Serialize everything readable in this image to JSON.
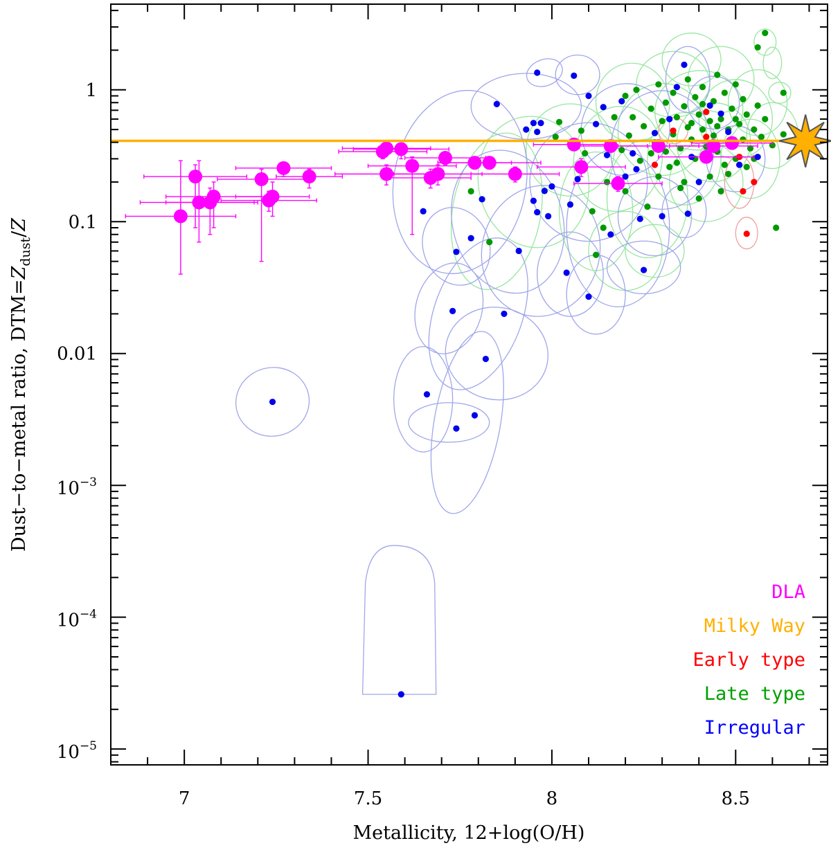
{
  "chart_data": {
    "type": "scatter",
    "title": "",
    "xlabel": "Metallicity, 12+log(O/H)",
    "ylabel_parts": {
      "prefix": "Dust−to−metal ratio, DTM=",
      "z": "Z",
      "sub": "dust",
      "slash": "/",
      "z2": "Z"
    },
    "xlim": [
      6.8,
      8.75
    ],
    "ylim_log10": [
      -5.12,
      0.65
    ],
    "log_y": true,
    "x_ticks": [
      {
        "value": 7.0,
        "label": "7"
      },
      {
        "value": 7.5,
        "label": "7.5"
      },
      {
        "value": 8.0,
        "label": "8"
      },
      {
        "value": 8.5,
        "label": "8.5"
      }
    ],
    "y_ticks": [
      {
        "log": 0,
        "label": "1"
      },
      {
        "log": -1,
        "label": "0.1"
      },
      {
        "log": -2,
        "label": "0.01"
      }
    ],
    "y_ticks_exp": [
      {
        "log": -3,
        "base": "10",
        "exp": "−3"
      },
      {
        "log": -4,
        "base": "10",
        "exp": "−4"
      },
      {
        "log": -5,
        "base": "10",
        "exp": "−5"
      }
    ],
    "milky_way": {
      "dtm": 0.41,
      "x_star": 8.69
    },
    "legend": [
      {
        "label": "DLA",
        "color": "#ff00ff"
      },
      {
        "label": "Milky Way",
        "color": "#ffb000"
      },
      {
        "label": "Early type",
        "color": "#ff0000"
      },
      {
        "label": "Late type",
        "color": "#00a000"
      },
      {
        "label": "Irregular",
        "color": "#0000ff"
      }
    ],
    "colors": {
      "dla": "#ff00ff",
      "milky_way": "#ffb000",
      "early": "#ff0000",
      "late": "#009900",
      "irregular": "#0000ee",
      "irregular_ellipse": "#9fa6ea",
      "late_ellipse": "#98e6a0",
      "early_ellipse": "#f0a0a0"
    },
    "dla": [
      {
        "x": 6.99,
        "y": 0.11,
        "xerr": 0.15,
        "yup": 0.29,
        "ydown": 0.04
      },
      {
        "x": 7.03,
        "y": 0.22,
        "xerr": 0.14,
        "yup": 0.27,
        "ydown": 0.09
      },
      {
        "x": 7.04,
        "y": 0.14,
        "xerr": 0.16,
        "yup": 0.29,
        "ydown": 0.07
      },
      {
        "x": 7.07,
        "y": 0.14,
        "xerr": 0.12,
        "yup": 0.18,
        "ydown": 0.08
      },
      {
        "x": 7.08,
        "y": 0.155,
        "xerr": 0.13,
        "yup": 0.2,
        "ydown": 0.09
      },
      {
        "x": 7.21,
        "y": 0.21,
        "xerr": 0.12,
        "yup": 0.25,
        "ydown": 0.05
      },
      {
        "x": 7.23,
        "y": 0.145,
        "xerr": 0.13,
        "yup": 0.17,
        "ydown": 0.12
      },
      {
        "x": 7.24,
        "y": 0.155,
        "xerr": 0.1,
        "yup": 0.2,
        "ydown": 0.11
      },
      {
        "x": 7.27,
        "y": 0.255,
        "xerr": 0.13,
        "yup": 0.28,
        "ydown": 0.22
      },
      {
        "x": 7.34,
        "y": 0.22,
        "xerr": 0.09,
        "yup": 0.25,
        "ydown": 0.18
      },
      {
        "x": 7.54,
        "y": 0.34,
        "xerr": 0.12,
        "yup": 0.38,
        "ydown": 0.3
      },
      {
        "x": 7.55,
        "y": 0.36,
        "xerr": 0.12,
        "yup": 0.4,
        "ydown": 0.32
      },
      {
        "x": 7.55,
        "y": 0.23,
        "xerr": 0.14,
        "yup": 0.27,
        "ydown": 0.19
      },
      {
        "x": 7.59,
        "y": 0.355,
        "xerr": 0.13,
        "yup": 0.39,
        "ydown": 0.3
      },
      {
        "x": 7.62,
        "y": 0.265,
        "xerr": 0.12,
        "yup": 0.31,
        "ydown": 0.08
      },
      {
        "x": 7.67,
        "y": 0.215,
        "xerr": 0.11,
        "yup": 0.25,
        "ydown": 0.18
      },
      {
        "x": 7.69,
        "y": 0.23,
        "xerr": 0.12,
        "yup": 0.27,
        "ydown": 0.19
      },
      {
        "x": 7.71,
        "y": 0.305,
        "xerr": 0.11,
        "yup": 0.33,
        "ydown": 0.27
      },
      {
        "x": 7.79,
        "y": 0.28,
        "xerr": 0.1,
        "yup": 0.31,
        "ydown": 0.25
      },
      {
        "x": 7.83,
        "y": 0.28,
        "xerr": 0.14,
        "yup": 0.31,
        "ydown": 0.25
      },
      {
        "x": 7.9,
        "y": 0.23,
        "xerr": 0.12,
        "yup": 0.26,
        "ydown": 0.2
      },
      {
        "x": 8.06,
        "y": 0.385,
        "xerr": 0.11,
        "yup": 0.42,
        "ydown": 0.35
      },
      {
        "x": 8.08,
        "y": 0.26,
        "xerr": 0.12,
        "yup": 0.3,
        "ydown": 0.22
      },
      {
        "x": 8.16,
        "y": 0.375,
        "xerr": 0.1,
        "yup": 0.41,
        "ydown": 0.34
      },
      {
        "x": 8.18,
        "y": 0.195,
        "xerr": 0.12,
        "yup": 0.22,
        "ydown": 0.17
      },
      {
        "x": 8.29,
        "y": 0.375,
        "xerr": 0.11,
        "yup": 0.41,
        "ydown": 0.34
      },
      {
        "x": 8.42,
        "y": 0.31,
        "xerr": 0.13,
        "yup": 0.34,
        "ydown": 0.28
      },
      {
        "x": 8.44,
        "y": 0.375,
        "xerr": 0.12,
        "yup": 0.41,
        "ydown": 0.34
      },
      {
        "x": 8.49,
        "y": 0.395,
        "xerr": 0.11,
        "yup": 0.43,
        "ydown": 0.36
      }
    ],
    "irregular": [
      {
        "x": 7.24,
        "y": 0.0043
      },
      {
        "x": 7.59,
        "y": 2.6e-05
      },
      {
        "x": 7.66,
        "y": 0.0049
      },
      {
        "x": 7.74,
        "y": 0.0027
      },
      {
        "x": 7.79,
        "y": 0.0034
      },
      {
        "x": 7.82,
        "y": 0.0091
      },
      {
        "x": 7.73,
        "y": 0.021
      },
      {
        "x": 7.87,
        "y": 0.02
      },
      {
        "x": 7.65,
        "y": 0.12
      },
      {
        "x": 7.74,
        "y": 0.059
      },
      {
        "x": 7.78,
        "y": 0.075
      },
      {
        "x": 7.81,
        "y": 0.148
      },
      {
        "x": 7.85,
        "y": 0.78
      },
      {
        "x": 7.91,
        "y": 0.06
      },
      {
        "x": 7.93,
        "y": 0.5
      },
      {
        "x": 7.95,
        "y": 0.56
      },
      {
        "x": 7.96,
        "y": 1.35
      },
      {
        "x": 7.97,
        "y": 0.56
      },
      {
        "x": 7.96,
        "y": 0.48
      },
      {
        "x": 7.96,
        "y": 0.118
      },
      {
        "x": 7.95,
        "y": 0.144
      },
      {
        "x": 7.98,
        "y": 0.171
      },
      {
        "x": 7.99,
        "y": 0.11
      },
      {
        "x": 8.0,
        "y": 0.185
      },
      {
        "x": 8.06,
        "y": 1.28
      },
      {
        "x": 8.04,
        "y": 0.041
      },
      {
        "x": 8.05,
        "y": 0.135
      },
      {
        "x": 8.07,
        "y": 0.21
      },
      {
        "x": 8.1,
        "y": 0.9
      },
      {
        "x": 8.1,
        "y": 0.027
      },
      {
        "x": 8.12,
        "y": 0.55
      },
      {
        "x": 8.14,
        "y": 0.74
      },
      {
        "x": 8.15,
        "y": 0.32
      },
      {
        "x": 8.16,
        "y": 0.08
      },
      {
        "x": 8.19,
        "y": 0.82
      },
      {
        "x": 8.2,
        "y": 0.22
      },
      {
        "x": 8.22,
        "y": 0.33
      },
      {
        "x": 8.23,
        "y": 0.25
      },
      {
        "x": 8.24,
        "y": 0.105
      },
      {
        "x": 8.25,
        "y": 0.043
      },
      {
        "x": 8.28,
        "y": 0.47
      },
      {
        "x": 8.3,
        "y": 0.11
      },
      {
        "x": 8.32,
        "y": 0.6
      },
      {
        "x": 8.34,
        "y": 1.05
      },
      {
        "x": 8.36,
        "y": 1.55
      },
      {
        "x": 8.37,
        "y": 0.115
      },
      {
        "x": 8.38,
        "y": 0.31
      },
      {
        "x": 8.4,
        "y": 0.2
      },
      {
        "x": 8.43,
        "y": 0.76
      },
      {
        "x": 8.46,
        "y": 0.66
      },
      {
        "x": 8.48,
        "y": 0.48
      },
      {
        "x": 8.51,
        "y": 0.27
      },
      {
        "x": 8.56,
        "y": 0.31
      }
    ],
    "early": [
      {
        "x": 8.28,
        "y": 0.27
      },
      {
        "x": 8.33,
        "y": 0.49
      },
      {
        "x": 8.42,
        "y": 0.68
      },
      {
        "x": 8.42,
        "y": 0.44
      },
      {
        "x": 8.51,
        "y": 0.31
      },
      {
        "x": 8.52,
        "y": 0.17
      },
      {
        "x": 8.53,
        "y": 0.081
      },
      {
        "x": 8.55,
        "y": 0.2
      }
    ],
    "late": [
      {
        "x": 7.78,
        "y": 0.17
      },
      {
        "x": 7.83,
        "y": 0.07
      },
      {
        "x": 8.01,
        "y": 0.44
      },
      {
        "x": 8.02,
        "y": 0.57
      },
      {
        "x": 8.08,
        "y": 0.49
      },
      {
        "x": 8.09,
        "y": 0.33
      },
      {
        "x": 8.11,
        "y": 0.12
      },
      {
        "x": 8.12,
        "y": 0.056
      },
      {
        "x": 8.14,
        "y": 0.09
      },
      {
        "x": 8.15,
        "y": 0.2
      },
      {
        "x": 8.17,
        "y": 0.62
      },
      {
        "x": 8.19,
        "y": 0.35
      },
      {
        "x": 8.2,
        "y": 0.17
      },
      {
        "x": 8.21,
        "y": 0.45
      },
      {
        "x": 8.22,
        "y": 0.62
      },
      {
        "x": 8.24,
        "y": 0.29
      },
      {
        "x": 8.25,
        "y": 0.53
      },
      {
        "x": 8.26,
        "y": 0.13
      },
      {
        "x": 8.27,
        "y": 0.72
      },
      {
        "x": 8.28,
        "y": 0.4
      },
      {
        "x": 8.29,
        "y": 0.22
      },
      {
        "x": 8.3,
        "y": 0.58
      },
      {
        "x": 8.31,
        "y": 0.8
      },
      {
        "x": 8.31,
        "y": 0.34
      },
      {
        "x": 8.32,
        "y": 0.26
      },
      {
        "x": 8.33,
        "y": 0.46
      },
      {
        "x": 8.33,
        "y": 0.95
      },
      {
        "x": 8.34,
        "y": 0.62
      },
      {
        "x": 8.35,
        "y": 0.36
      },
      {
        "x": 8.35,
        "y": 0.18
      },
      {
        "x": 8.36,
        "y": 0.75
      },
      {
        "x": 8.37,
        "y": 0.52
      },
      {
        "x": 8.37,
        "y": 1.2
      },
      {
        "x": 8.38,
        "y": 0.42
      },
      {
        "x": 8.39,
        "y": 0.3
      },
      {
        "x": 8.39,
        "y": 0.88
      },
      {
        "x": 8.4,
        "y": 0.65
      },
      {
        "x": 8.41,
        "y": 0.5
      },
      {
        "x": 8.41,
        "y": 1.05
      },
      {
        "x": 8.42,
        "y": 0.37
      },
      {
        "x": 8.43,
        "y": 0.58
      },
      {
        "x": 8.43,
        "y": 0.22
      },
      {
        "x": 8.44,
        "y": 0.82
      },
      {
        "x": 8.44,
        "y": 0.45
      },
      {
        "x": 8.45,
        "y": 1.3
      },
      {
        "x": 8.45,
        "y": 0.34
      },
      {
        "x": 8.46,
        "y": 0.6
      },
      {
        "x": 8.47,
        "y": 0.27
      },
      {
        "x": 8.47,
        "y": 0.95
      },
      {
        "x": 8.48,
        "y": 0.5
      },
      {
        "x": 8.49,
        "y": 0.72
      },
      {
        "x": 8.49,
        "y": 0.4
      },
      {
        "x": 8.5,
        "y": 1.1
      },
      {
        "x": 8.5,
        "y": 0.3
      },
      {
        "x": 8.51,
        "y": 0.55
      },
      {
        "x": 8.52,
        "y": 0.85
      },
      {
        "x": 8.52,
        "y": 0.42
      },
      {
        "x": 8.53,
        "y": 0.65
      },
      {
        "x": 8.54,
        "y": 0.36
      },
      {
        "x": 8.55,
        "y": 0.5
      },
      {
        "x": 8.56,
        "y": 0.76
      },
      {
        "x": 8.56,
        "y": 2.1
      },
      {
        "x": 8.57,
        "y": 0.44
      },
      {
        "x": 8.58,
        "y": 2.7
      },
      {
        "x": 8.58,
        "y": 0.6
      },
      {
        "x": 8.6,
        "y": 0.38
      },
      {
        "x": 8.61,
        "y": 0.09
      },
      {
        "x": 8.63,
        "y": 0.46
      },
      {
        "x": 8.63,
        "y": 0.95
      },
      {
        "x": 8.2,
        "y": 0.9
      },
      {
        "x": 8.23,
        "y": 1.0
      },
      {
        "x": 8.27,
        "y": 0.33
      },
      {
        "x": 8.29,
        "y": 1.1
      },
      {
        "x": 8.34,
        "y": 0.28
      },
      {
        "x": 8.36,
        "y": 0.2
      },
      {
        "x": 8.4,
        "y": 0.15
      },
      {
        "x": 8.46,
        "y": 0.17
      },
      {
        "x": 8.48,
        "y": 0.23
      },
      {
        "x": 8.53,
        "y": 0.26
      },
      {
        "x": 8.41,
        "y": 0.78
      },
      {
        "x": 8.38,
        "y": 0.56
      },
      {
        "x": 8.45,
        "y": 0.53
      },
      {
        "x": 8.5,
        "y": 0.6
      },
      {
        "x": 8.55,
        "y": 0.3
      }
    ],
    "irregular_ellipses": [
      {
        "x": 7.24,
        "y": 0.0043,
        "rx": 0.1,
        "ry": 0.26,
        "rot": -12
      },
      {
        "x": 7.65,
        "y": 0.0045,
        "rx": 0.08,
        "ry": 0.4,
        "rot": 0
      },
      {
        "x": 7.72,
        "y": 0.003,
        "rx": 0.11,
        "ry": 0.15,
        "rot": 0
      },
      {
        "x": 7.77,
        "y": 0.003,
        "rx": 0.09,
        "ry": 0.7,
        "rot": 10
      },
      {
        "x": 7.85,
        "y": 0.01,
        "rx": 0.14,
        "ry": 0.35,
        "rot": 12
      },
      {
        "x": 7.72,
        "y": 0.022,
        "rx": 0.09,
        "ry": 0.35,
        "rot": 15
      },
      {
        "x": 7.8,
        "y": 0.02,
        "rx": 0.12,
        "ry": 0.6,
        "rot": 20
      },
      {
        "x": 7.74,
        "y": 0.065,
        "rx": 0.09,
        "ry": 0.3,
        "rot": -20
      },
      {
        "x": 7.75,
        "y": 0.2,
        "rx": 0.18,
        "ry": 0.7,
        "rot": 10
      },
      {
        "x": 7.88,
        "y": 0.1,
        "rx": 0.15,
        "ry": 0.55,
        "rot": -15
      },
      {
        "x": 7.97,
        "y": 0.06,
        "rx": 0.16,
        "ry": 0.5,
        "rot": 15
      },
      {
        "x": 7.98,
        "y": 1.35,
        "rx": 0.05,
        "ry": 0.1,
        "rot": -20
      },
      {
        "x": 8.07,
        "y": 1.3,
        "rx": 0.06,
        "ry": 0.15,
        "rot": 0
      },
      {
        "x": 7.93,
        "y": 0.75,
        "rx": 0.15,
        "ry": 0.25,
        "rot": 0
      },
      {
        "x": 8.05,
        "y": 0.04,
        "rx": 0.09,
        "ry": 0.32,
        "rot": 0
      },
      {
        "x": 8.12,
        "y": 0.028,
        "rx": 0.08,
        "ry": 0.3,
        "rot": 0
      },
      {
        "x": 8.25,
        "y": 0.045,
        "rx": 0.1,
        "ry": 0.2,
        "rot": 0
      },
      {
        "x": 8.18,
        "y": 0.09,
        "rx": 0.14,
        "ry": 0.6,
        "rot": 0
      },
      {
        "x": 8.1,
        "y": 0.2,
        "rx": 0.16,
        "ry": 0.45,
        "rot": -10
      },
      {
        "x": 8.28,
        "y": 0.11,
        "rx": 0.1,
        "ry": 0.3,
        "rot": 0
      },
      {
        "x": 8.2,
        "y": 0.5,
        "rx": 0.12,
        "ry": 0.35,
        "rot": 20
      },
      {
        "x": 8.3,
        "y": 0.35,
        "rx": 0.14,
        "ry": 0.45,
        "rot": 0
      },
      {
        "x": 8.37,
        "y": 1.2,
        "rx": 0.06,
        "ry": 0.25,
        "rot": 0
      },
      {
        "x": 8.44,
        "y": 0.8,
        "rx": 0.07,
        "ry": 0.2,
        "rot": 0
      },
      {
        "x": 8.5,
        "y": 0.3,
        "rx": 0.08,
        "ry": 0.25,
        "rot": 0
      },
      {
        "x": 8.36,
        "y": 0.12,
        "rx": 0.06,
        "ry": 0.2,
        "rot": 0
      }
    ],
    "irregular_bound": {
      "x_center": 7.585,
      "y_low": 2.6e-05,
      "y_top": 0.00035,
      "x_half": 0.1
    },
    "late_ellipses": [
      {
        "x": 7.85,
        "y": 0.12,
        "rx": 0.12,
        "ry": 0.6,
        "rot": 10
      },
      {
        "x": 7.95,
        "y": 0.2,
        "rx": 0.15,
        "ry": 0.5,
        "rot": -10
      },
      {
        "x": 8.05,
        "y": 0.35,
        "rx": 0.12,
        "ry": 0.35,
        "rot": 0
      },
      {
        "x": 8.12,
        "y": 0.12,
        "rx": 0.1,
        "ry": 0.45,
        "rot": 0
      },
      {
        "x": 8.18,
        "y": 0.3,
        "rx": 0.12,
        "ry": 0.4,
        "rot": 10
      },
      {
        "x": 8.22,
        "y": 0.8,
        "rx": 0.1,
        "ry": 0.3,
        "rot": -10
      },
      {
        "x": 8.26,
        "y": 0.15,
        "rx": 0.11,
        "ry": 0.45,
        "rot": 0
      },
      {
        "x": 8.3,
        "y": 0.5,
        "rx": 0.12,
        "ry": 0.35,
        "rot": 10
      },
      {
        "x": 8.33,
        "y": 1.1,
        "rx": 0.1,
        "ry": 0.25,
        "rot": 0
      },
      {
        "x": 8.36,
        "y": 0.3,
        "rx": 0.1,
        "ry": 0.35,
        "rot": 0
      },
      {
        "x": 8.4,
        "y": 0.7,
        "rx": 0.12,
        "ry": 0.3,
        "rot": -10
      },
      {
        "x": 8.44,
        "y": 0.4,
        "rx": 0.1,
        "ry": 0.3,
        "rot": 10
      },
      {
        "x": 8.46,
        "y": 1.2,
        "rx": 0.09,
        "ry": 0.25,
        "rot": 0
      },
      {
        "x": 8.5,
        "y": 0.6,
        "rx": 0.1,
        "ry": 0.3,
        "rot": 0
      },
      {
        "x": 8.54,
        "y": 0.3,
        "rx": 0.08,
        "ry": 0.3,
        "rot": 0
      },
      {
        "x": 8.56,
        "y": 0.8,
        "rx": 0.08,
        "ry": 0.25,
        "rot": 0
      },
      {
        "x": 8.58,
        "y": 2.3,
        "rx": 0.03,
        "ry": 0.1,
        "rot": 0
      },
      {
        "x": 8.6,
        "y": 1.6,
        "rx": 0.025,
        "ry": 0.12,
        "rot": 0
      },
      {
        "x": 8.6,
        "y": 0.45,
        "rx": 0.07,
        "ry": 0.25,
        "rot": 0
      },
      {
        "x": 8.62,
        "y": 0.95,
        "rx": 0.03,
        "ry": 0.08,
        "rot": 0
      },
      {
        "x": 8.28,
        "y": 0.06,
        "rx": 0.08,
        "ry": 0.2,
        "rot": 0
      },
      {
        "x": 8.42,
        "y": 0.2,
        "rx": 0.1,
        "ry": 0.3,
        "rot": 0
      },
      {
        "x": 8.2,
        "y": 0.06,
        "rx": 0.1,
        "ry": 0.3,
        "rot": 0
      },
      {
        "x": 8.38,
        "y": 1.7,
        "rx": 0.08,
        "ry": 0.2,
        "rot": 0
      }
    ],
    "early_ellipses": [
      {
        "x": 8.53,
        "y": 0.082,
        "rx": 0.03,
        "ry": 0.12,
        "rot": 0
      },
      {
        "x": 8.51,
        "y": 0.2,
        "rx": 0.04,
        "ry": 0.2,
        "rot": 0
      },
      {
        "x": 8.33,
        "y": 0.49,
        "rx": 0.04,
        "ry": 0.1,
        "rot": 0
      }
    ]
  }
}
